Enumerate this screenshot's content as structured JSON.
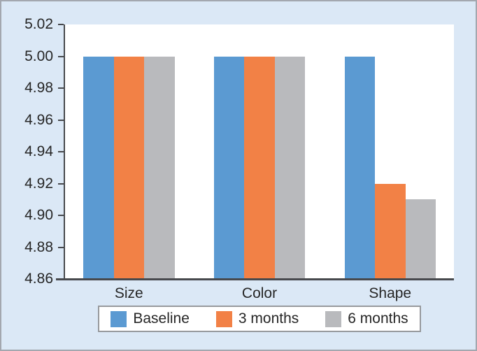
{
  "chart_data": {
    "type": "bar",
    "categories": [
      "Size",
      "Color",
      "Shape"
    ],
    "series": [
      {
        "name": "Baseline",
        "color": "#5b9ad2",
        "values": [
          5.0,
          5.0,
          5.0
        ]
      },
      {
        "name": "3 months",
        "color": "#f28146",
        "values": [
          5.0,
          5.0,
          4.92
        ]
      },
      {
        "name": "6 months",
        "color": "#b9babd",
        "values": [
          5.0,
          5.0,
          4.91
        ]
      }
    ],
    "title": "",
    "xlabel": "",
    "ylabel": "",
    "ylim": [
      4.86,
      5.02
    ],
    "yticks": [
      "5.02",
      "5.00",
      "4.98",
      "4.96",
      "4.94",
      "4.92",
      "4.90",
      "4.88",
      "4.86"
    ],
    "grid": false,
    "legend_position": "bottom"
  },
  "colors": {
    "figure_background": "#dbe8f6",
    "figure_border": "#a3a7af",
    "plot_background": "#ffffff",
    "axis_line": "#47494d",
    "text": "#262626",
    "legend_background": "#ffffff",
    "legend_border": "#97999d"
  }
}
